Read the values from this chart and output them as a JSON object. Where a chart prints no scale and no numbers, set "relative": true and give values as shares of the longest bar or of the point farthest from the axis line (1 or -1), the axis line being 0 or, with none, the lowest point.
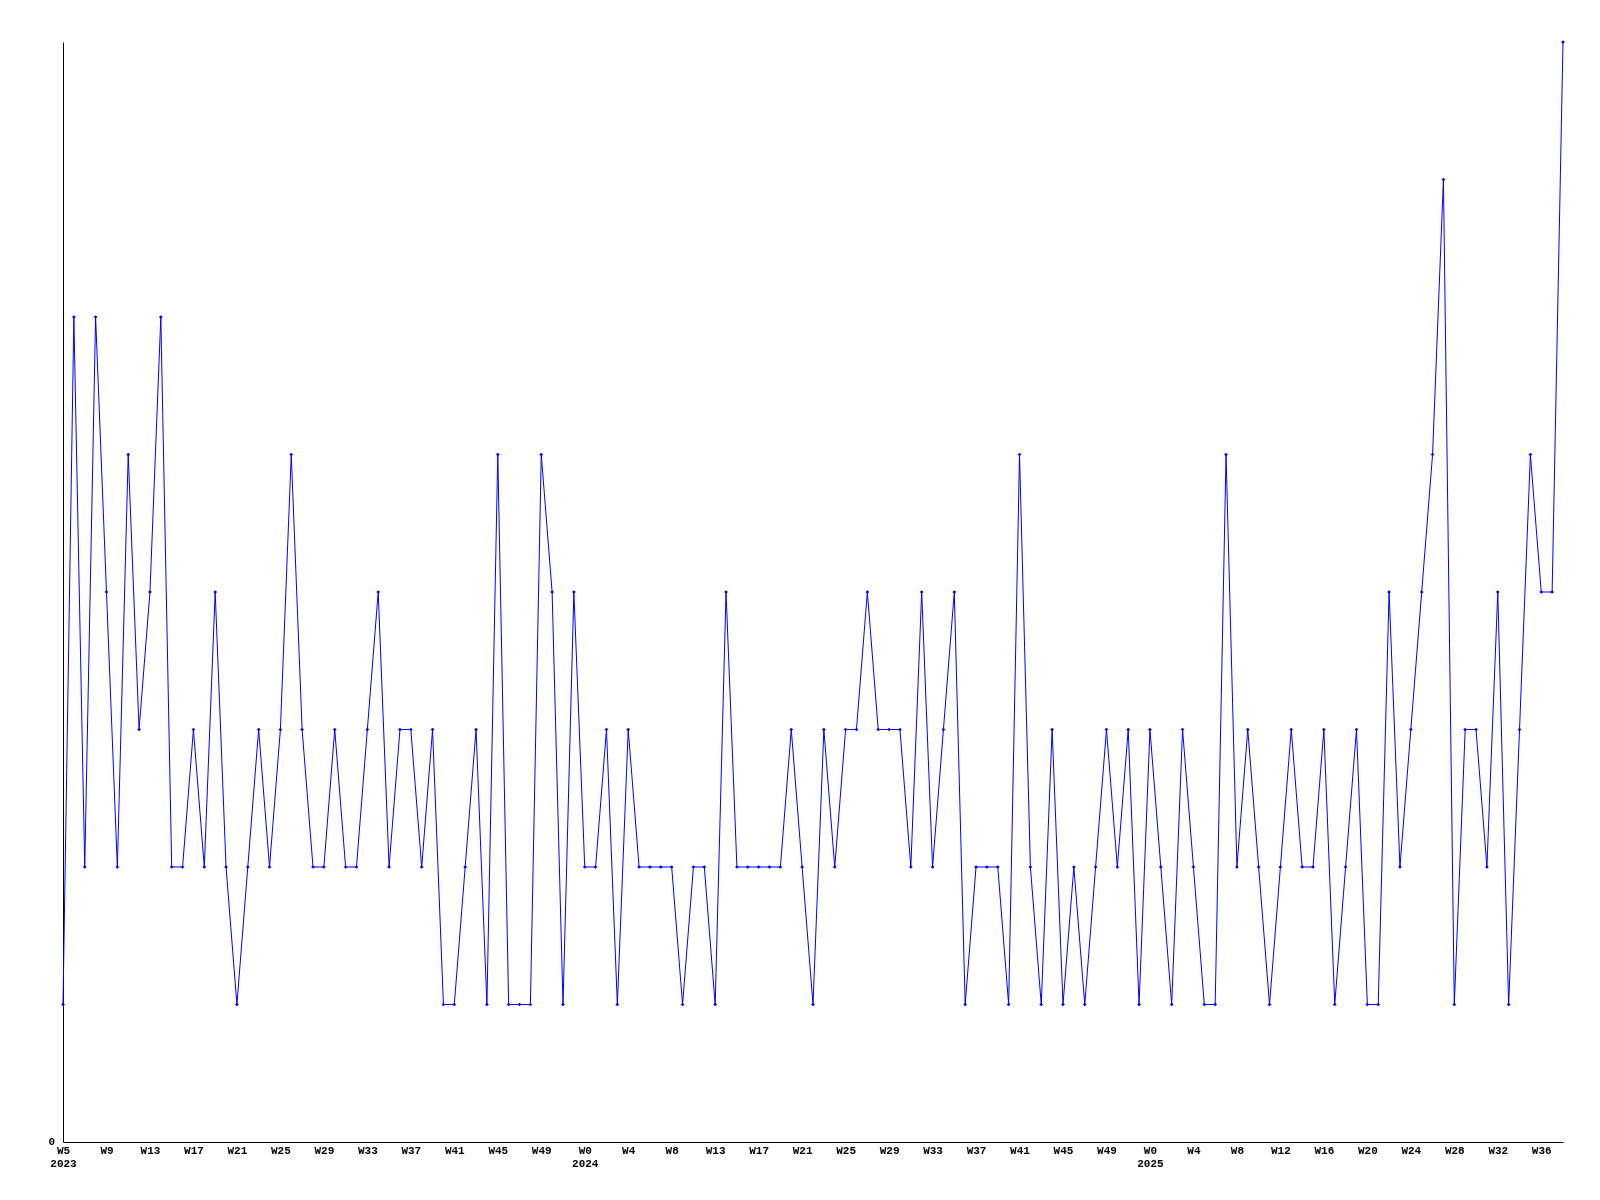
{
  "chart_data": {
    "type": "line",
    "relative": true,
    "color": "#0000ff",
    "marker": "diamond",
    "line_style": "solid",
    "grid": false,
    "annotations": [
      "0"
    ],
    "categories": [
      "W5\n2023",
      null,
      null,
      null,
      "W9",
      null,
      null,
      null,
      "W13",
      null,
      null,
      null,
      "W17",
      null,
      null,
      null,
      "W21",
      null,
      null,
      null,
      "W25",
      null,
      null,
      null,
      "W29",
      null,
      null,
      null,
      "W33",
      null,
      null,
      null,
      "W37",
      null,
      null,
      null,
      "W41",
      null,
      null,
      null,
      "W45",
      null,
      null,
      null,
      "W49",
      null,
      null,
      null,
      "W0\n2024",
      null,
      null,
      null,
      "W4",
      null,
      null,
      null,
      "W8",
      null,
      null,
      null,
      "W13",
      null,
      null,
      null,
      "W17",
      null,
      null,
      null,
      "W21",
      null,
      null,
      null,
      "W25",
      null,
      null,
      null,
      "W29",
      null,
      null,
      null,
      "W33",
      null,
      null,
      null,
      "W37",
      null,
      null,
      null,
      "W41",
      null,
      null,
      null,
      "W45",
      null,
      null,
      null,
      "W49",
      null,
      null,
      null,
      "W0\n2025",
      null,
      null,
      null,
      "W4",
      null,
      null,
      null,
      "W8",
      null,
      null,
      null,
      "W12",
      null,
      null,
      null,
      "W16",
      null,
      null,
      null,
      "W20",
      null,
      null,
      null,
      "W24",
      null,
      null,
      null,
      "W28",
      null,
      null,
      null,
      "W32",
      null,
      null,
      null,
      "W36",
      null,
      null
    ],
    "values": [
      0.125,
      0.75,
      0.25,
      0.75,
      0.5,
      0.25,
      0.625,
      0.375,
      0.5,
      0.75,
      0.25,
      0.25,
      0.375,
      0.25,
      0.5,
      0.25,
      0.125,
      0.25,
      0.375,
      0.25,
      0.375,
      0.625,
      0.375,
      0.25,
      0.25,
      0.375,
      0.25,
      0.25,
      0.375,
      0.5,
      0.25,
      0.375,
      0.375,
      0.25,
      0.375,
      0.125,
      0.125,
      0.25,
      0.375,
      0.125,
      0.625,
      0.125,
      0.125,
      0.125,
      0.625,
      0.5,
      0.125,
      0.5,
      0.25,
      0.25,
      0.375,
      0.125,
      0.375,
      0.25,
      0.25,
      0.25,
      0.25,
      0.125,
      0.25,
      0.25,
      0.125,
      0.5,
      0.25,
      0.25,
      0.25,
      0.25,
      0.25,
      0.375,
      0.25,
      0.125,
      0.375,
      0.25,
      0.375,
      0.375,
      0.5,
      0.375,
      0.375,
      0.375,
      0.25,
      0.5,
      0.25,
      0.375,
      0.5,
      0.125,
      0.25,
      0.25,
      0.25,
      0.125,
      0.625,
      0.25,
      0.125,
      0.375,
      0.125,
      0.25,
      0.125,
      0.25,
      0.375,
      0.25,
      0.375,
      0.125,
      0.375,
      0.25,
      0.125,
      0.375,
      0.25,
      0.125,
      0.125,
      0.625,
      0.25,
      0.375,
      0.25,
      0.125,
      0.25,
      0.375,
      0.25,
      0.25,
      0.375,
      0.125,
      0.25,
      0.375,
      0.125,
      0.125,
      0.5,
      0.25,
      0.375,
      0.5,
      0.625,
      0.875,
      0.125,
      0.375,
      0.375,
      0.25,
      0.5,
      0.125,
      0.375,
      0.625,
      0.5,
      0.5,
      1
    ]
  }
}
